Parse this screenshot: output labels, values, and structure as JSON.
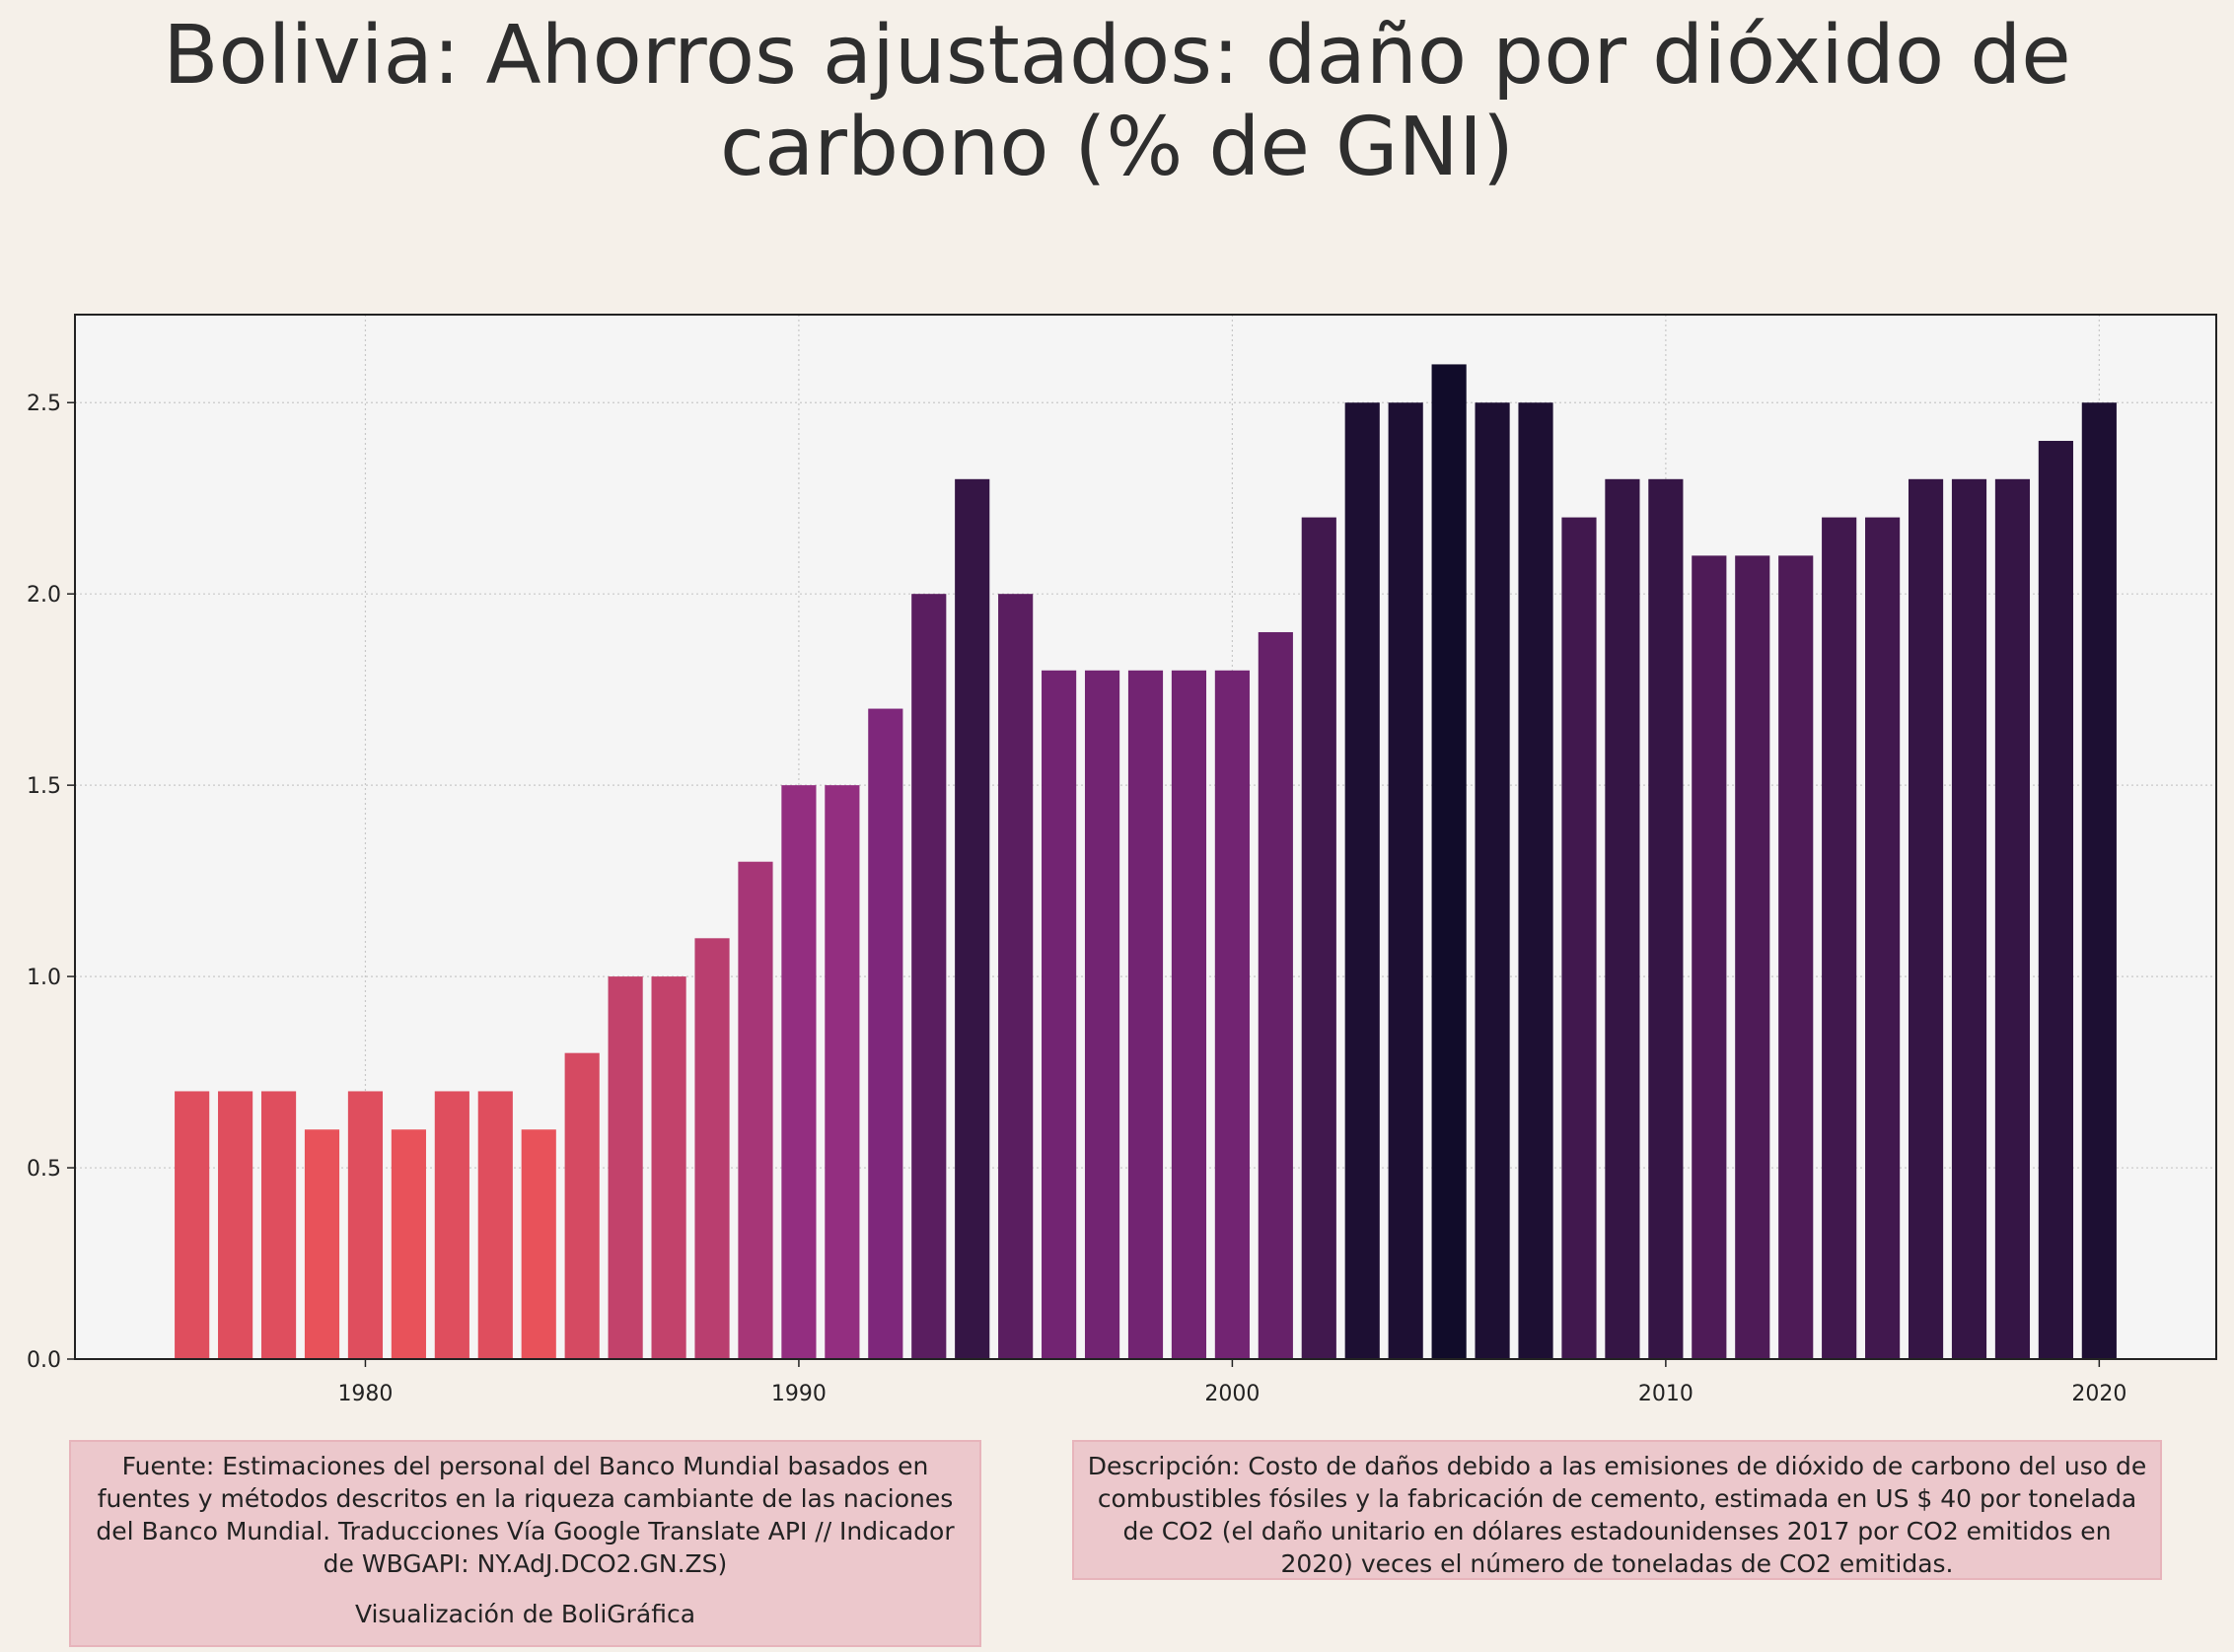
{
  "title": "Bolivia:  Ahorros ajustados: daño por dióxido de carbono (% de GNI)",
  "source_text": "Fuente: Estimaciones del personal del Banco Mundial basados en fuentes y métodos descritos en la riqueza cambiante de las naciones del Banco Mundial. Traducciones Vía Google Translate API // Indicador de WBGAPI: NY.AdJ.DCO2.GN.ZS)",
  "credit_text": "Visualización de BoliGráfica",
  "description_text": "Descripción: Costo de daños debido a las emisiones de dióxido de carbono del uso de combustibles fósiles y la fabricación de cemento, estimada en US $ 40 por tonelada de CO2 (el daño unitario en dólares estadounidenses 2017 por CO2 emitidos en 2020) veces el número de toneladas de CO2 emitidas.",
  "colors": {
    "background": "#f5f0e9",
    "plot_background": "#f5f5f5",
    "bar_low": "#e8525a",
    "bar_mid": "#8a2a84",
    "bar_high": "#110c2a"
  },
  "chart_data": {
    "type": "bar",
    "x": [
      1976,
      1977,
      1978,
      1979,
      1980,
      1981,
      1982,
      1983,
      1984,
      1985,
      1986,
      1987,
      1988,
      1989,
      1990,
      1991,
      1992,
      1993,
      1994,
      1995,
      1996,
      1997,
      1998,
      1999,
      2000,
      2001,
      2002,
      2003,
      2004,
      2005,
      2006,
      2007,
      2008,
      2009,
      2010,
      2011,
      2012,
      2013,
      2014,
      2015,
      2016,
      2017,
      2018,
      2019,
      2020
    ],
    "values": [
      0.7,
      0.7,
      0.7,
      0.6,
      0.7,
      0.6,
      0.7,
      0.7,
      0.6,
      0.8,
      1.0,
      1.0,
      1.1,
      1.3,
      1.5,
      1.5,
      1.7,
      2.0,
      2.3,
      2.0,
      1.8,
      1.8,
      1.8,
      1.8,
      1.8,
      1.9,
      2.2,
      2.5,
      2.5,
      2.6,
      2.5,
      2.5,
      2.2,
      2.3,
      2.3,
      2.1,
      2.1,
      2.1,
      2.2,
      2.2,
      2.3,
      2.3,
      2.3,
      2.4,
      2.5
    ],
    "xlim": [
      1973.3,
      2022.7
    ],
    "ylim": [
      0,
      2.73
    ],
    "x_ticks": [
      "1980",
      "1990",
      "2000",
      "2010",
      "2020"
    ],
    "y_ticks": [
      "0.0",
      "0.5",
      "1.0",
      "1.5",
      "2.0",
      "2.5"
    ],
    "grid": true,
    "xlabel": "",
    "ylabel": ""
  }
}
